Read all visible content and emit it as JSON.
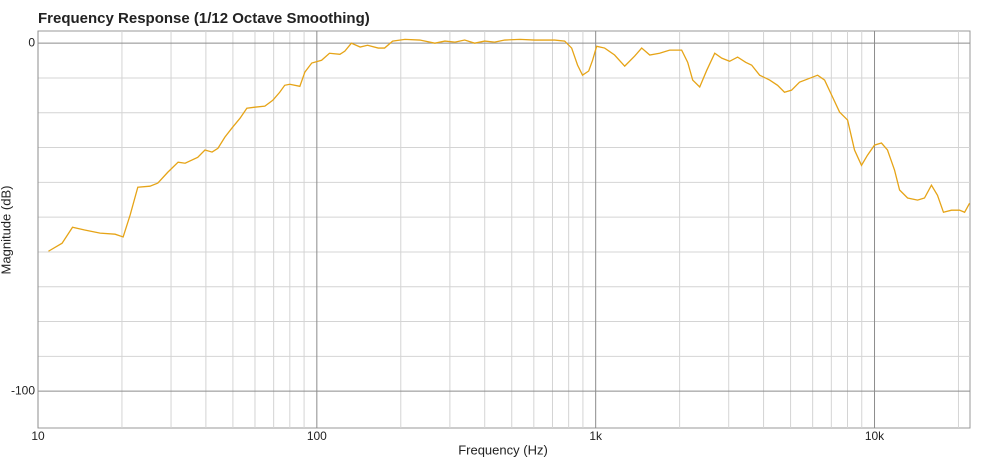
{
  "chart_data": {
    "type": "line",
    "title": "Frequency Response (1/12 Octave Smoothing)",
    "x_label": "Frequency (Hz)",
    "y_label": "Magnitude (dB)",
    "x_scale": "log",
    "xlim": [
      10,
      22000
    ],
    "ylim": [
      -110.6,
      3.5
    ],
    "xticks": [
      10,
      100,
      {
        "value": 1000,
        "label": "1k"
      },
      {
        "value": 10000,
        "label": "10k"
      }
    ],
    "yticks": [
      -100,
      0
    ],
    "x_minor_ticks": [
      20,
      30,
      40,
      50,
      60,
      70,
      80,
      90,
      200,
      300,
      400,
      500,
      600,
      700,
      800,
      900,
      2000,
      3000,
      4000,
      5000,
      6000,
      7000,
      8000,
      9000,
      20000
    ],
    "y_minor_ticks": [
      -90,
      -80,
      -70,
      -60,
      -50,
      -40,
      -30,
      -20,
      -10
    ],
    "grid": true,
    "x": [
      10.9,
      12.2,
      13.3,
      14.7,
      16.7,
      18.9,
      20.2,
      21.4,
      22.8,
      25.2,
      26.9,
      29.2,
      31.8,
      33.7,
      37.4,
      39.7,
      42.1,
      44.2,
      46.8,
      49.6,
      53,
      56.1,
      59.9,
      65.1,
      69.5,
      73.6,
      76.7,
      80,
      86.9,
      90.6,
      95.9,
      104,
      111,
      121,
      126,
      133,
      143,
      152,
      166,
      175,
      187,
      207,
      234,
      265,
      288,
      313,
      339,
      368,
      400,
      434,
      472,
      535,
      604,
      713,
      774,
      820,
      861,
      897,
      944,
      975,
      1008,
      1077,
      1169,
      1271,
      1380,
      1462,
      1563,
      1695,
      1842,
      2034,
      2138,
      2228,
      2361,
      2502,
      2673,
      2832,
      3022,
      3229,
      3451,
      3625,
      3873,
      4207,
      4490,
      4755,
      5041,
      5383,
      5848,
      6250,
      6622,
      7015,
      7494,
      8006,
      8478,
      8980,
      9435,
      10000,
      10590,
      11130,
      11800,
      12300,
      13140,
      14270,
      15110,
      16000,
      16820,
      17670,
      18880,
      20180,
      21040,
      21930
    ],
    "series": [
      {
        "color": "#e6a417",
        "values": [
          -59.8,
          -57.5,
          -52.9,
          -53.7,
          -54.6,
          -54.9,
          -55.7,
          -49.4,
          -41.4,
          -41.1,
          -40.2,
          -37.1,
          -34.2,
          -34.5,
          -32.8,
          -30.7,
          -31.3,
          -30.2,
          -27,
          -24.4,
          -21.6,
          -18.7,
          -18.4,
          -18.1,
          -16.4,
          -14.1,
          -12.1,
          -11.8,
          -12.4,
          -8.3,
          -5.7,
          -4.9,
          -2.9,
          -3.2,
          -2.3,
          0,
          -1.1,
          -0.6,
          -1.4,
          -1.4,
          0.6,
          1.1,
          0.9,
          0,
          0.6,
          0.3,
          0.9,
          0,
          0.6,
          0.3,
          0.9,
          1.1,
          0.9,
          0.9,
          0.6,
          -1.4,
          -6.3,
          -9.2,
          -8,
          -4.9,
          -0.9,
          -1.4,
          -3.4,
          -6.6,
          -3.7,
          -1.4,
          -3.4,
          -2.9,
          -2,
          -2,
          -5.5,
          -10.6,
          -12.6,
          -7.8,
          -2.9,
          -4.3,
          -5.2,
          -4,
          -5.5,
          -6.3,
          -9.2,
          -10.6,
          -12.1,
          -14.1,
          -13.5,
          -11.2,
          -10.1,
          -9.2,
          -10.6,
          -14.9,
          -19.8,
          -22.1,
          -30.7,
          -35.1,
          -32.2,
          -29.3,
          -28.7,
          -30.7,
          -36.5,
          -42.2,
          -44.5,
          -45.1,
          -44.5,
          -40.8,
          -43.7,
          -48.6,
          -48,
          -48,
          -48.6,
          -46
        ]
      }
    ]
  }
}
